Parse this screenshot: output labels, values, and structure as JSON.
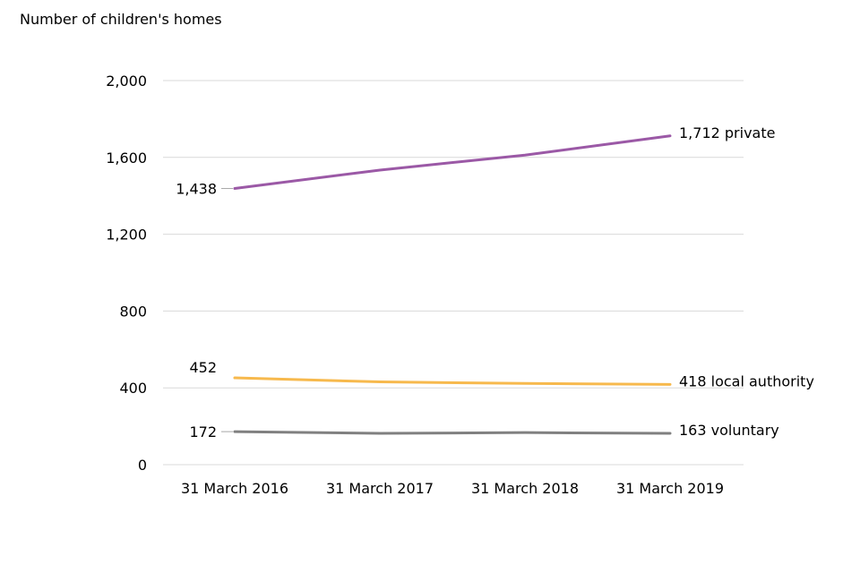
{
  "chart_data": {
    "type": "line",
    "ylabel": "Number of children's homes",
    "xlabel": "",
    "categories": [
      "31 March 2016",
      "31 March 2017",
      "31 March 2018",
      "31 March 2019"
    ],
    "ylim": [
      0,
      2000
    ],
    "yticks": [
      0,
      400,
      800,
      1200,
      1600,
      2000
    ],
    "ytick_labels": [
      "0",
      "400",
      "800",
      "1,200",
      "1,600",
      "2,000"
    ],
    "grid": true,
    "series": [
      {
        "name": "private",
        "color": "#9b59a6",
        "values": [
          1438,
          1534,
          1612,
          1712
        ],
        "start_label": "1,438",
        "end_label": "1,712 private"
      },
      {
        "name": "local authority",
        "color": "#f7b94d",
        "values": [
          452,
          431,
          423,
          418
        ],
        "start_label": "452",
        "end_label": "418 local authority"
      },
      {
        "name": "voluntary",
        "color": "#808080",
        "values": [
          172,
          163,
          167,
          163
        ],
        "start_label": "172",
        "end_label": "163 voluntary"
      }
    ]
  }
}
